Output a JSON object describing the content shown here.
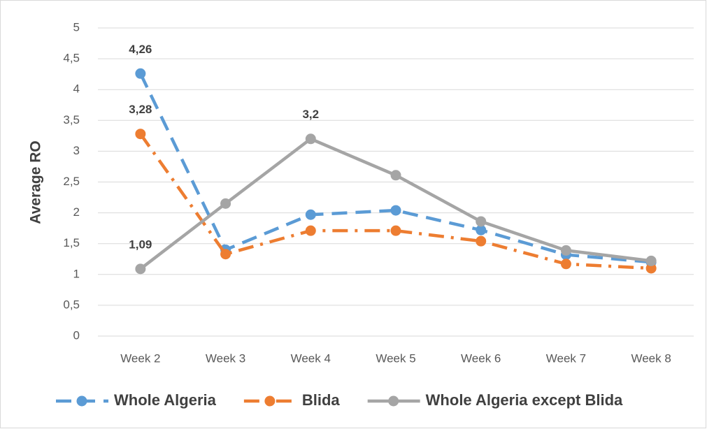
{
  "chart_data": {
    "type": "line",
    "y_label": "Average RO",
    "categories": [
      "Week 2",
      "Week 3",
      "Week 4",
      "Week 5",
      "Week 6",
      "Week 7",
      "Week 8"
    ],
    "series": [
      {
        "name": "Whole Algeria",
        "color": "#5b9bd5",
        "line_style": "dashed",
        "values": [
          4.26,
          1.4,
          1.97,
          2.04,
          1.72,
          1.32,
          1.2
        ],
        "value_labels": [
          "4,26",
          null,
          null,
          null,
          null,
          null,
          null
        ]
      },
      {
        "name": "Blida",
        "color": "#ed7d31",
        "line_style": "dash-dot",
        "values": [
          3.28,
          1.33,
          1.71,
          1.71,
          1.54,
          1.17,
          1.1
        ],
        "value_labels": [
          "3,28",
          null,
          null,
          null,
          null,
          null,
          null
        ]
      },
      {
        "name": "Whole Algeria except Blida",
        "color": "#a5a5a5",
        "line_style": "solid",
        "values": [
          1.09,
          2.15,
          3.2,
          2.61,
          1.86,
          1.39,
          1.22
        ],
        "value_labels": [
          "1,09",
          null,
          "3,2",
          null,
          null,
          null,
          null
        ]
      }
    ],
    "ylim": [
      0,
      5
    ],
    "yticks": [
      0,
      {
        "value": 0.5,
        "label": "0,5"
      },
      1,
      {
        "value": 1.5,
        "label": "1,5"
      },
      2,
      {
        "value": 2.5,
        "label": "2,5"
      },
      3,
      {
        "value": 3.5,
        "label": "3,5"
      },
      4,
      {
        "value": 4.5,
        "label": "4,5"
      },
      5
    ],
    "grid": true,
    "legend": "bottom"
  }
}
